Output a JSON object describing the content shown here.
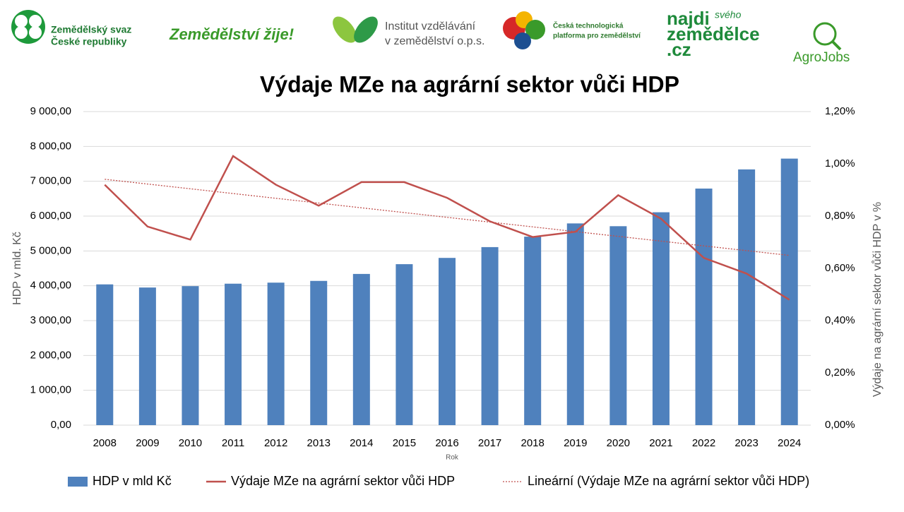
{
  "logos": {
    "svaz": [
      "Zemědělský svaz",
      "České republiky"
    ],
    "zije": "Zemědělství žije!",
    "institut": [
      "Institut vzdělávání",
      "v zemědělství o.p.s."
    ],
    "platforma": [
      "Česká technologická",
      "platforma pro zemědělství"
    ],
    "najdi": [
      "najdi",
      "svého",
      "zemědělce",
      ".cz"
    ],
    "agrojobs": "AgroJobs"
  },
  "chart_data": {
    "type": "bar",
    "title": "Výdaje MZe na agrární sektor vůči HDP",
    "x_label": "Rok",
    "y_label": "HDP v mld. Kč",
    "y2_label": "Výdaje na agrární sektor vůči HDP v %",
    "categories": [
      "2008",
      "2009",
      "2010",
      "2011",
      "2012",
      "2013",
      "2014",
      "2015",
      "2016",
      "2017",
      "2018",
      "2019",
      "2020",
      "2021",
      "2022",
      "2023",
      "2024"
    ],
    "series": [
      {
        "name": "HDP v mld Kč",
        "type": "bar",
        "color": "#4f81bd",
        "values": [
          4040,
          3950,
          3990,
          4060,
          4090,
          4140,
          4340,
          4620,
          4800,
          5110,
          5410,
          5790,
          5710,
          6110,
          6790,
          7340,
          7650
        ]
      },
      {
        "name": "Výdaje MZe na agrární sektor vůči HDP",
        "type": "line",
        "axis": "y2",
        "color": "#c0504d",
        "values": [
          0.92,
          0.76,
          0.71,
          1.03,
          0.92,
          0.84,
          0.93,
          0.93,
          0.87,
          0.78,
          0.72,
          0.74,
          0.88,
          0.79,
          0.64,
          0.58,
          0.48
        ]
      }
    ],
    "trendline": {
      "name": "Lineární (Výdaje MZe na agrární sektor vůči HDP)",
      "color": "#c0504d",
      "style": "dotted"
    },
    "ylim": [
      0,
      9000
    ],
    "yticks": [
      {
        "value": 0,
        "label": "0,00"
      },
      {
        "value": 1000,
        "label": "1 000,00"
      },
      {
        "value": 2000,
        "label": "2 000,00"
      },
      {
        "value": 3000,
        "label": "3 000,00"
      },
      {
        "value": 4000,
        "label": "4 000,00"
      },
      {
        "value": 5000,
        "label": "5 000,00"
      },
      {
        "value": 6000,
        "label": "6 000,00"
      },
      {
        "value": 7000,
        "label": "7 000,00"
      },
      {
        "value": 8000,
        "label": "8 000,00"
      },
      {
        "value": 9000,
        "label": "9 000,00"
      }
    ],
    "y2lim": [
      0,
      1.2
    ],
    "y2ticks": [
      {
        "value": 0,
        "label": "0,00%"
      },
      {
        "value": 0.2,
        "label": "0,20%"
      },
      {
        "value": 0.4,
        "label": "0,40%"
      },
      {
        "value": 0.6,
        "label": "0,60%"
      },
      {
        "value": 0.8,
        "label": "0,80%"
      },
      {
        "value": 1.0,
        "label": "1,00%"
      },
      {
        "value": 1.2,
        "label": "1,20%"
      }
    ],
    "grid": true,
    "legend": "bottom"
  }
}
